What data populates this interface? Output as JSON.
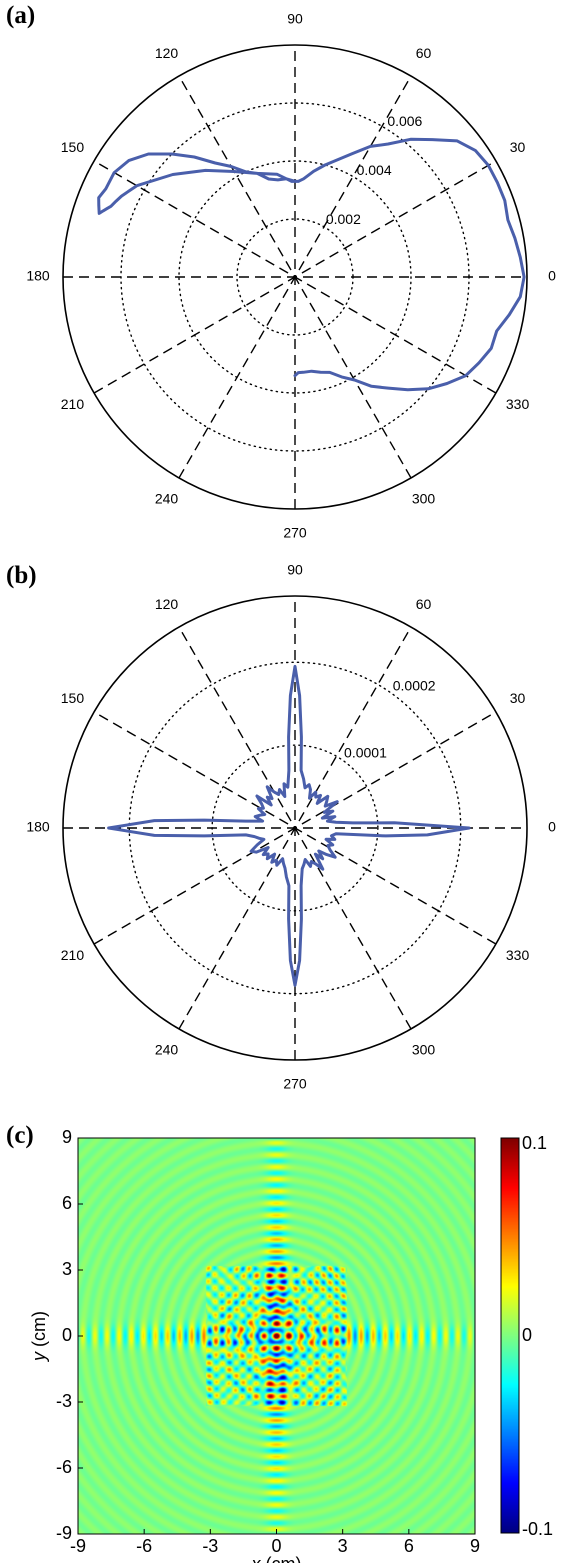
{
  "panels": [
    {
      "letter": "(a)"
    },
    {
      "letter": "(b)"
    },
    {
      "letter": "(c)"
    }
  ],
  "chart_data": [
    {
      "type": "line",
      "subtype": "polar",
      "rmax": 0.008,
      "r_ticks": [
        0.002,
        0.004,
        0.006
      ],
      "r_tick_labels": [
        "0.002",
        "0.004",
        "0.006"
      ],
      "angle_labels": [
        "0",
        "30",
        "60",
        "90",
        "120",
        "150",
        "180",
        "210",
        "240",
        "270",
        "300",
        "330"
      ],
      "grid": true,
      "series": [
        {
          "color": "#4a5fab",
          "theta_deg": [
            90,
            95,
            100,
            105,
            110,
            115,
            120,
            125,
            130,
            135,
            140,
            145,
            150,
            155,
            158,
            160,
            162,
            161,
            160,
            159,
            157,
            155,
            150,
            140,
            130,
            120,
            110,
            100,
            95,
            92,
            90,
            88,
            85,
            80,
            75,
            70,
            65,
            60,
            55,
            50,
            45,
            40,
            35,
            30,
            25,
            20,
            15,
            10,
            5,
            0,
            -5,
            -10,
            -15,
            -20,
            -25,
            -30,
            -35,
            -40,
            -45,
            -50,
            -55,
            -60,
            -65,
            -70,
            -75,
            -80,
            -85,
            -88,
            -90
          ],
          "r": [
            0.0033,
            0.0034,
            0.0034,
            0.0035,
            0.0038,
            0.004,
            0.0044,
            0.0048,
            0.0054,
            0.006,
            0.0066,
            0.007,
            0.0072,
            0.0072,
            0.0073,
            0.0072,
            0.0071,
            0.007,
            0.0069,
            0.0068,
            0.0067,
            0.0066,
            0.0063,
            0.0055,
            0.0048,
            0.0042,
            0.0038,
            0.0036,
            0.0034,
            0.0033,
            0.0033,
            0.0033,
            0.0034,
            0.0037,
            0.004,
            0.0043,
            0.0047,
            0.0052,
            0.0056,
            0.0062,
            0.0067,
            0.0073,
            0.0076,
            0.0077,
            0.0077,
            0.0077,
            0.0076,
            0.0077,
            0.0078,
            0.0079,
            0.0078,
            0.0075,
            0.0072,
            0.0072,
            0.007,
            0.0068,
            0.0064,
            0.006,
            0.0055,
            0.005,
            0.0046,
            0.0041,
            0.0038,
            0.0035,
            0.0034,
            0.0033,
            0.0033,
            0.0033,
            0.0034
          ]
        }
      ]
    },
    {
      "type": "line",
      "subtype": "polar",
      "rmax": 0.00028,
      "r_ticks": [
        0.0001,
        0.0002
      ],
      "r_tick_labels": [
        "0.0001",
        "0.0002"
      ],
      "angle_labels": [
        "0",
        "30",
        "60",
        "90",
        "120",
        "150",
        "180",
        "210",
        "240",
        "270",
        "300",
        "330"
      ],
      "grid": true,
      "series": [
        {
          "color": "#4a5fab",
          "theta_deg": [
            0,
            3,
            5,
            8,
            12,
            16,
            20,
            24,
            28,
            32,
            36,
            40,
            44,
            48,
            52,
            56,
            60,
            64,
            68,
            72,
            76,
            80,
            84,
            86,
            88,
            90,
            92,
            94,
            96,
            100,
            104,
            108,
            112,
            116,
            120,
            124,
            128,
            132,
            136,
            140,
            144,
            148,
            152,
            156,
            160,
            164,
            168,
            172,
            175,
            177,
            180,
            183,
            185,
            188,
            192,
            196,
            200,
            204,
            208,
            212,
            216,
            220,
            224,
            228,
            232,
            236,
            240,
            244,
            248,
            252,
            256,
            260,
            264,
            266,
            268,
            270,
            272,
            274,
            276,
            280,
            284,
            288,
            292,
            296,
            300,
            304,
            308,
            312,
            316,
            320,
            324,
            328,
            332,
            336,
            340,
            344,
            348,
            352,
            355,
            357,
            360
          ],
          "r": [
            0.00021,
            0.00012,
            7e-05,
            5e-05,
            4e-05,
            5e-05,
            3.5e-05,
            5e-05,
            4e-05,
            6e-05,
            4.5e-05,
            5e-05,
            5.5e-05,
            4e-05,
            5e-05,
            4.5e-05,
            5e-05,
            4e-05,
            5e-05,
            5.5e-05,
            5e-05,
            6e-05,
            7e-05,
            0.00011,
            0.00016,
            0.000195,
            0.00016,
            0.00011,
            7e-05,
            5e-05,
            5.5e-05,
            4e-05,
            5e-05,
            4.5e-05,
            5e-05,
            6e-05,
            4.5e-05,
            5e-05,
            4e-05,
            6e-05,
            5e-05,
            4.5e-05,
            5e-05,
            4e-05,
            4.5e-05,
            5e-05,
            4e-05,
            6e-05,
            0.00011,
            0.00017,
            0.000225,
            0.00017,
            0.00011,
            6e-05,
            5e-05,
            4.5e-05,
            4e-05,
            5e-05,
            6e-05,
            5.5e-05,
            4e-05,
            5e-05,
            4.5e-05,
            5e-05,
            4e-05,
            5e-05,
            4.5e-05,
            5e-05,
            4e-05,
            4.5e-05,
            5e-05,
            6e-05,
            7e-05,
            0.00011,
            0.00016,
            0.00019,
            0.00016,
            0.00011,
            7e-05,
            5e-05,
            4.5e-05,
            4e-05,
            5e-05,
            4.5e-05,
            5e-05,
            6e-05,
            4e-05,
            5e-05,
            4e-05,
            5e-05,
            6e-05,
            5e-05,
            4.5e-05,
            5e-05,
            4e-05,
            5e-05,
            4.5e-05,
            5e-05,
            0.00011,
            0.00016,
            0.00021
          ]
        }
      ]
    },
    {
      "type": "heatmap",
      "xlabel_var": "x",
      "xlabel_unit": " (cm)",
      "ylabel_var": "y",
      "ylabel_unit": " (cm)",
      "xlim": [
        -9,
        9
      ],
      "ylim": [
        9,
        -9
      ],
      "x_ticks": [
        -9,
        -6,
        -3,
        0,
        3,
        6,
        9
      ],
      "x_tick_labels": [
        "-9",
        "-6",
        "-3",
        "0",
        "3",
        "6",
        "9"
      ],
      "y_ticks": [
        -9,
        -6,
        -3,
        0,
        3,
        6,
        9
      ],
      "y_tick_labels": [
        "-9",
        "-6",
        "-3",
        "0",
        "3",
        "6",
        "9"
      ],
      "inner_square": [
        -3.2,
        3.2
      ],
      "colorbar": {
        "range": [
          -0.1,
          0.1
        ],
        "tick_labels": [
          "0.1",
          "0",
          "-0.1"
        ],
        "colormap": "jet"
      }
    }
  ]
}
